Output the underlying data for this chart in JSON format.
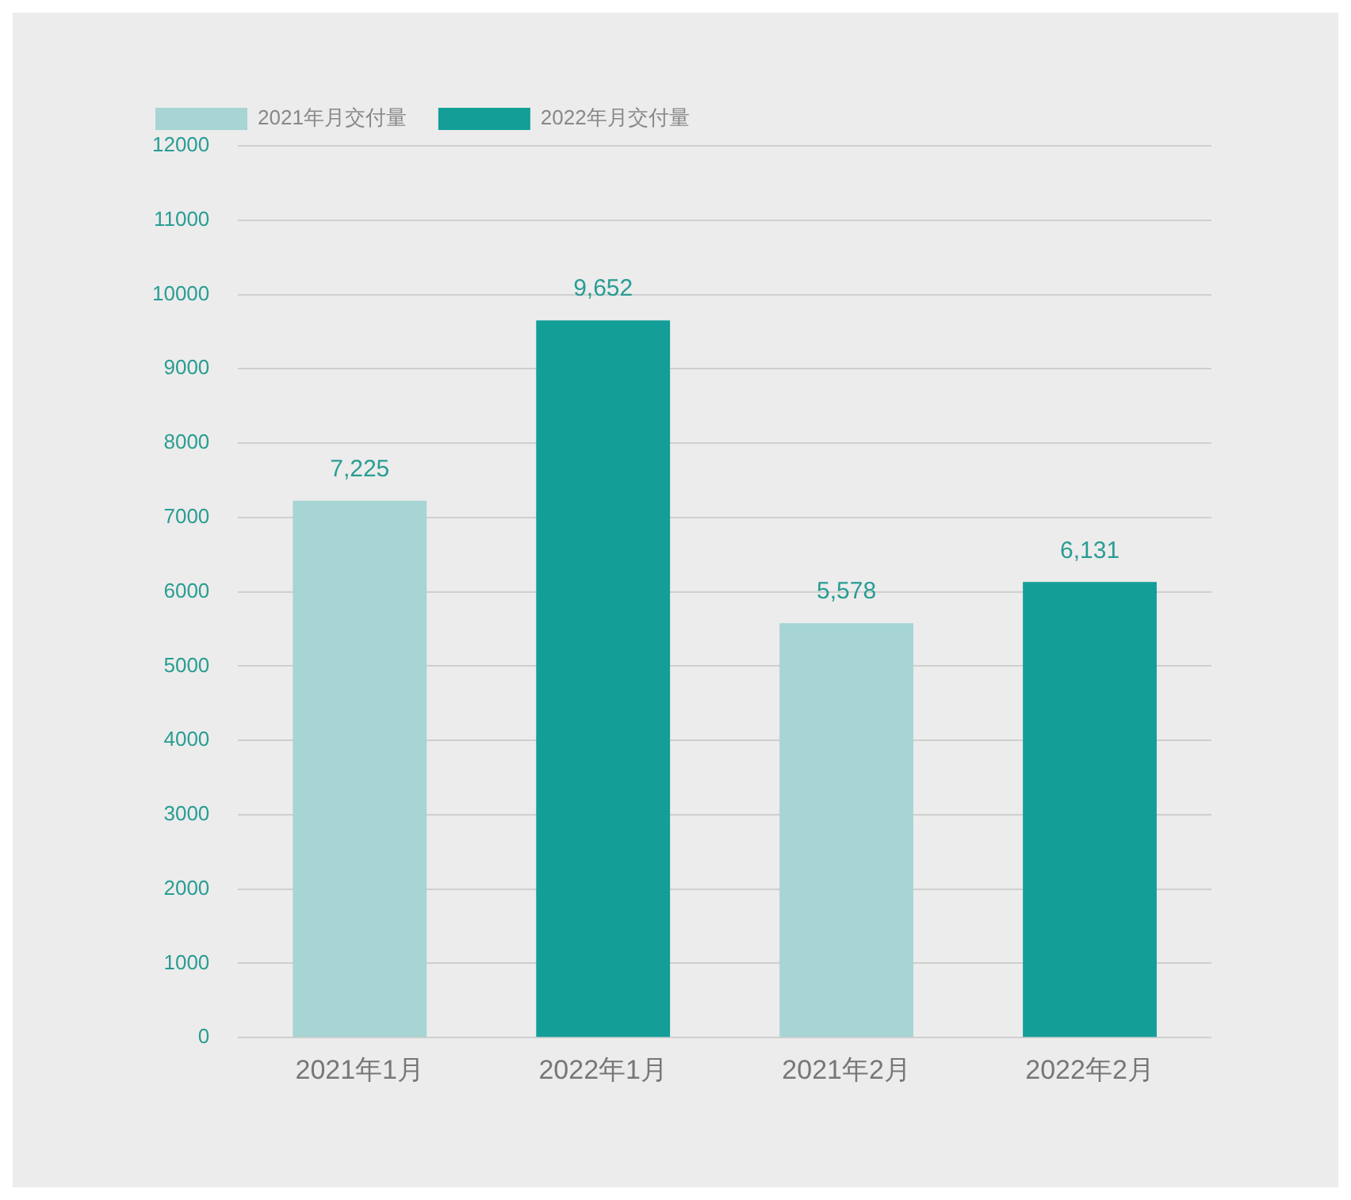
{
  "chart_data": {
    "type": "bar",
    "stacked": true,
    "categories": [
      "2021年1月",
      "2022年1月",
      "2021年2月",
      "2022年2月"
    ],
    "series": [
      {
        "name": "2021年月交付量",
        "color": "#a6d5d3",
        "values": [
          7225,
          null,
          5578,
          null
        ],
        "value_labels": [
          "7,225",
          null,
          "5,578",
          null
        ]
      },
      {
        "name": "2022年月交付量",
        "color": "#139e98",
        "values": [
          null,
          9652,
          null,
          6131
        ],
        "value_labels": [
          null,
          "9,652",
          null,
          "6,131"
        ]
      }
    ],
    "ylim": [
      0,
      12000
    ],
    "yticks": [
      0,
      1000,
      2000,
      3000,
      4000,
      5000,
      6000,
      7000,
      8000,
      9000,
      10000,
      11000,
      12000
    ],
    "grid": "y",
    "legend": "top left"
  }
}
